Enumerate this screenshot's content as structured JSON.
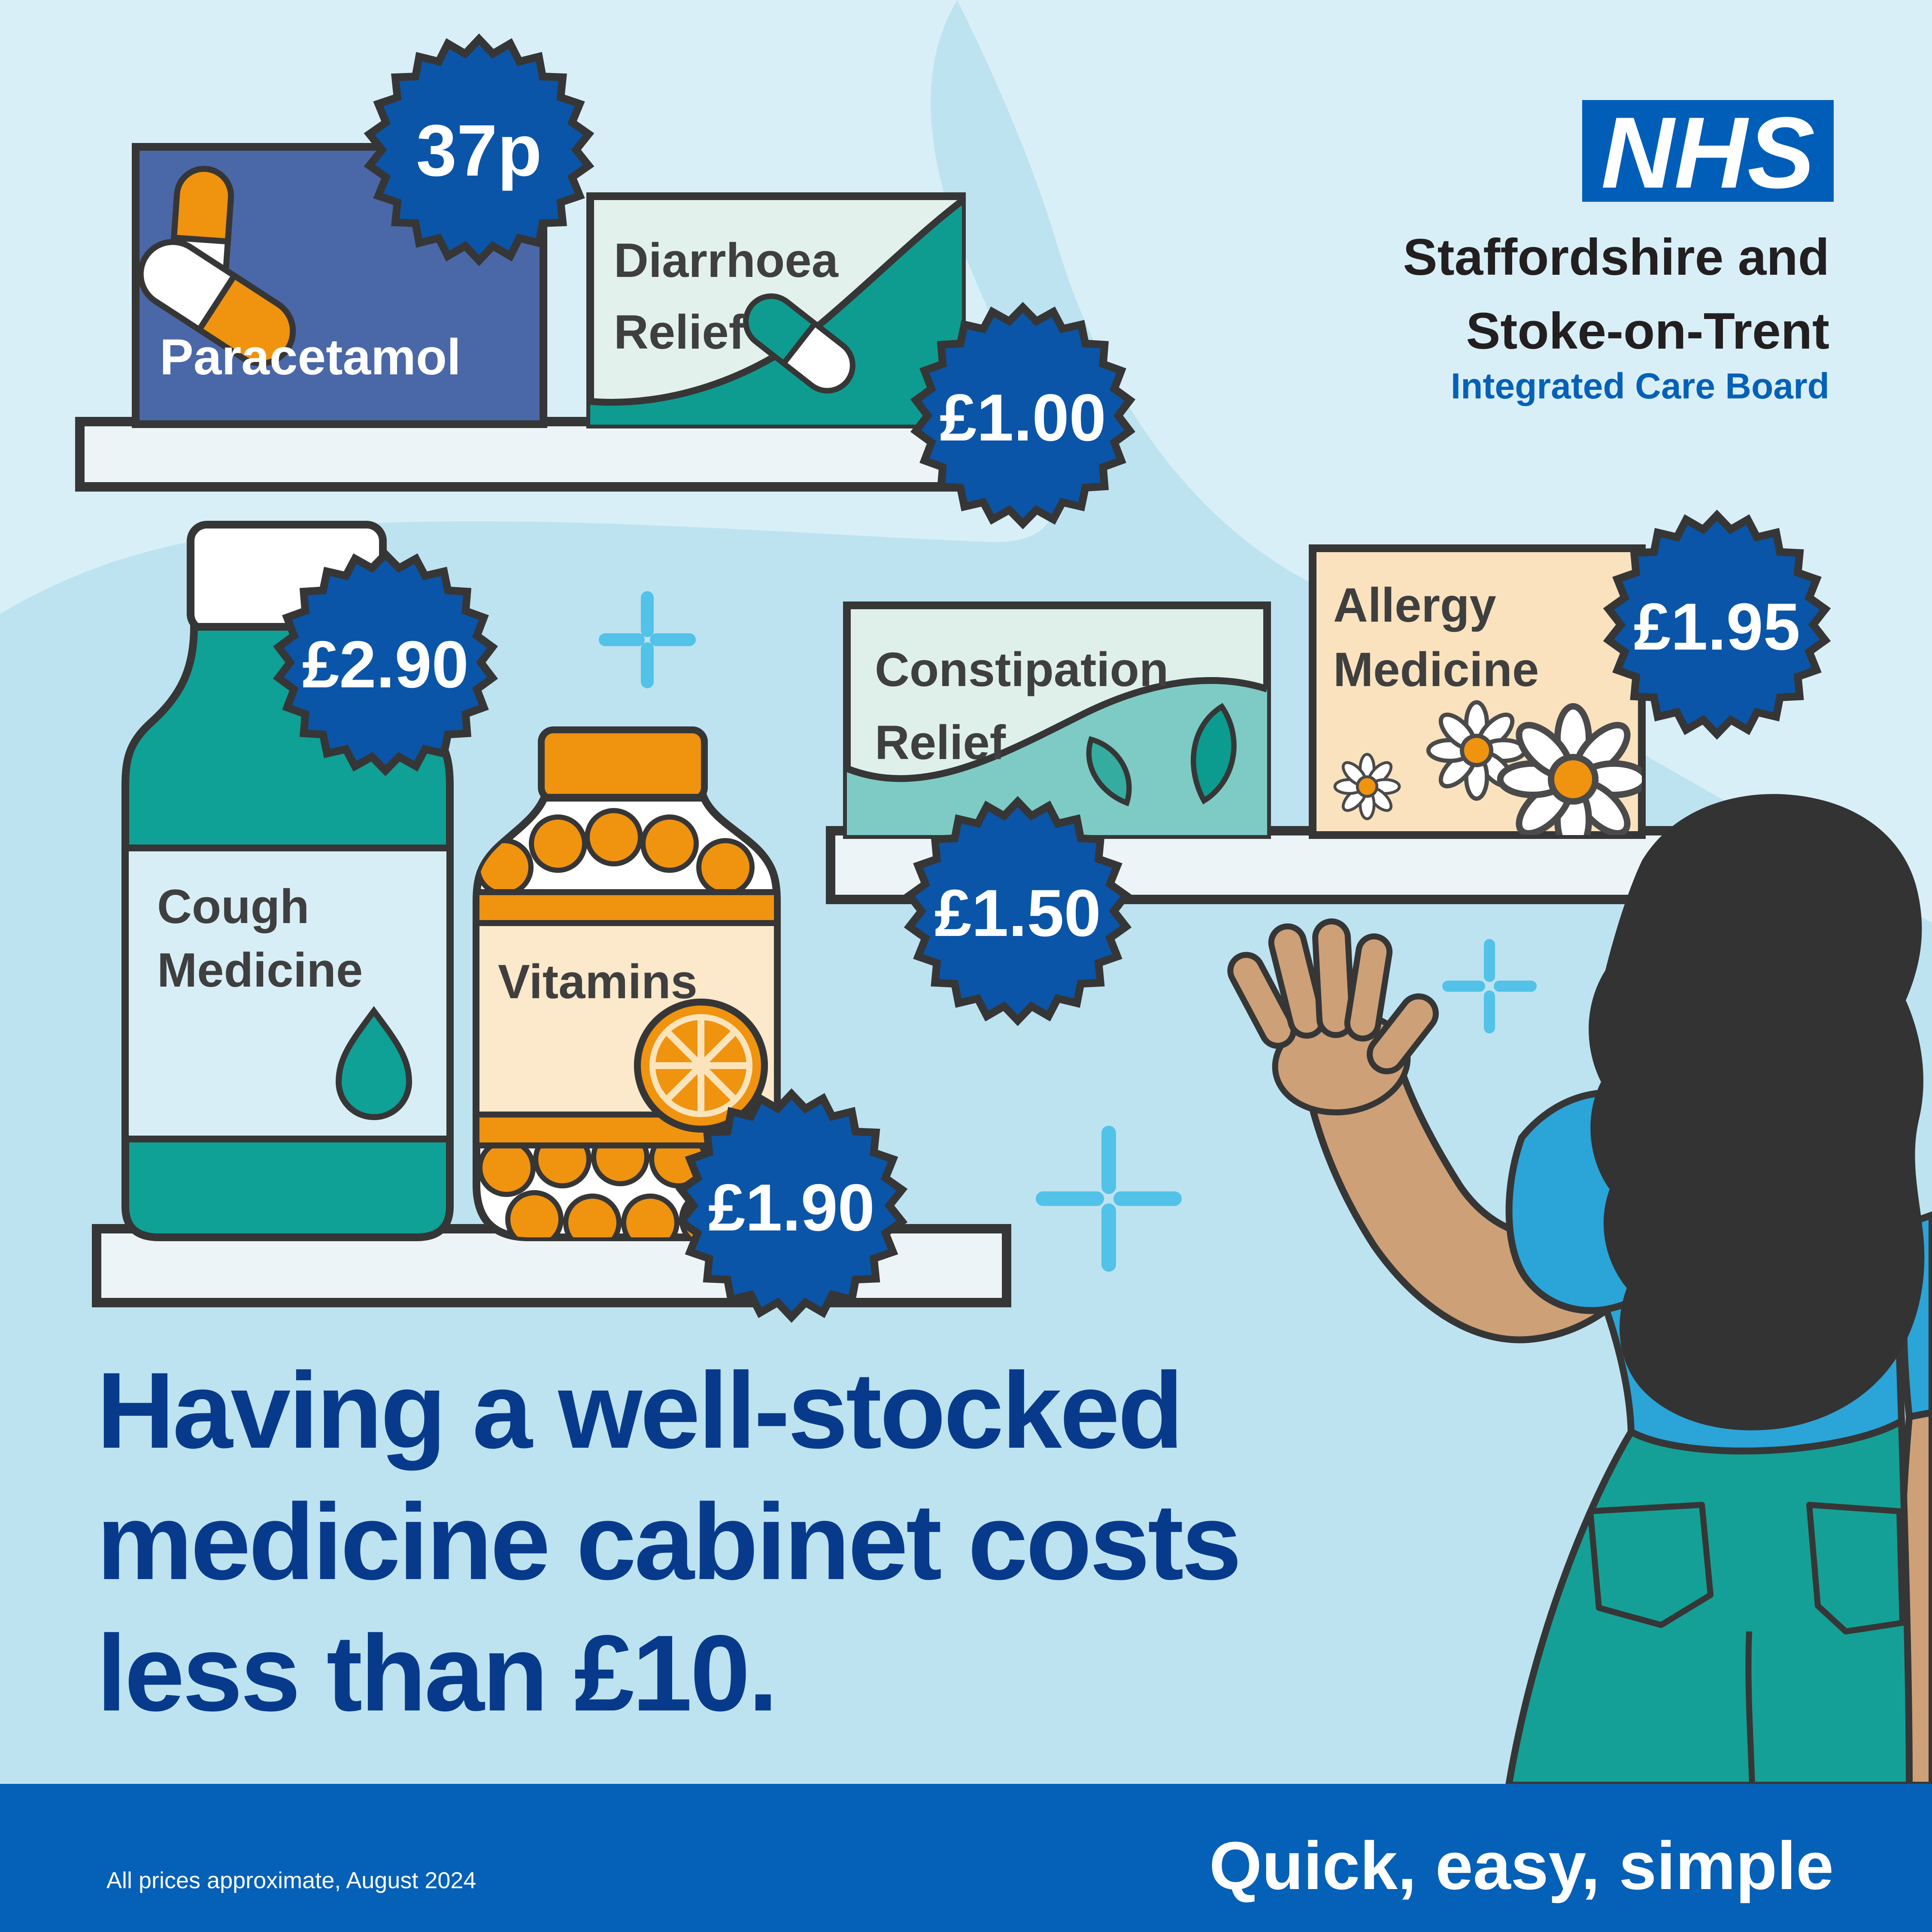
{
  "brand": {
    "logo_text": "NHS",
    "org_line1": "Staffordshire and",
    "org_line2": "Stoke-on-Trent",
    "org_line3": "Integrated Care Board"
  },
  "products": {
    "paracetamol": {
      "name": "Paracetamol",
      "price": "37p",
      "icon": "capsules-icon"
    },
    "diarrhoea": {
      "name_line1": "Diarrhoea",
      "name_line2": "Relief",
      "price": "£1.00",
      "icon": "capsule-icon"
    },
    "cough": {
      "name_line1": "Cough",
      "name_line2": "Medicine",
      "price": "£2.90",
      "icon": "drop-icon"
    },
    "vitamins": {
      "name": "Vitamins",
      "price": "£1.90",
      "icon": "orange-slice-icon"
    },
    "constipation": {
      "name_line1": "Constipation",
      "name_line2": "Relief",
      "price": "£1.50",
      "icon": "leaves-icon"
    },
    "allergy": {
      "name_line1": "Allergy",
      "name_line2": "Medicine",
      "price": "£1.95",
      "icon": "daisies-icon"
    }
  },
  "headline": {
    "line1": "Having a well-stocked",
    "line2": "medicine cabinet costs",
    "line3": "less than £10."
  },
  "footer": {
    "note": "All prices approximate, August 2024",
    "tagline": "Quick, easy, simple"
  },
  "colors": {
    "badge_blue": "#0A55A8",
    "nhs_blue": "#005EB8",
    "footer_blue": "#0560B7",
    "headline_navy": "#083A8C",
    "teal": "#0FA096",
    "orange": "#F0930F",
    "background_base": "#BDE3F1",
    "background_light": "#D9EFF8",
    "shelf_fill": "#ECF4F7",
    "outline": "#363636"
  }
}
